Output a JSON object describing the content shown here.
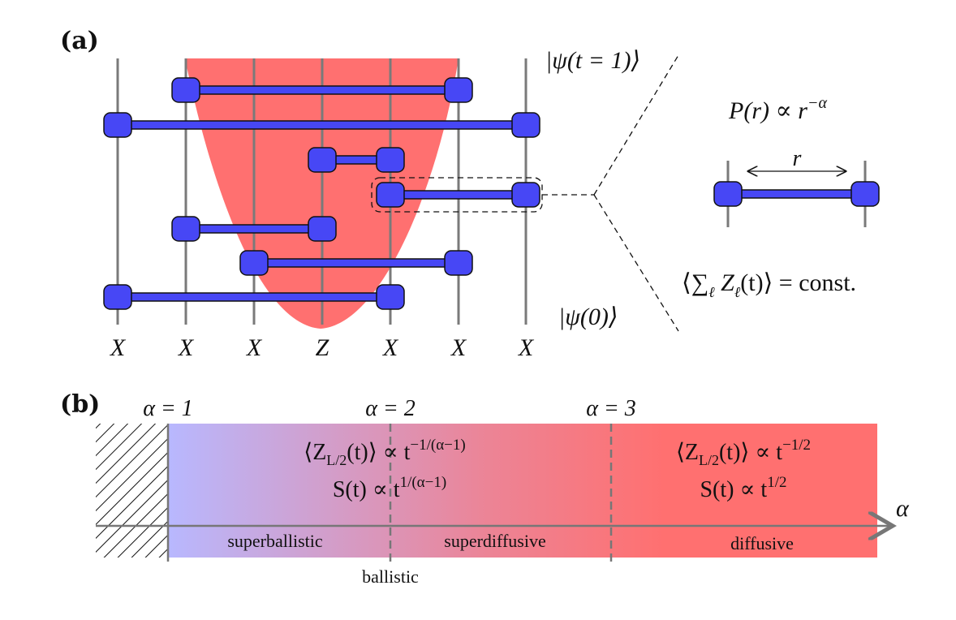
{
  "panel_a": {
    "label": "(a)",
    "state_top": "|ψ(t = 1)⟩",
    "state_bottom": "|ψ(0)⟩",
    "operators": [
      "X",
      "X",
      "X",
      "Z",
      "X",
      "X",
      "X"
    ],
    "probability_law": "P(r) ∝ r",
    "probability_exponent": "−α",
    "distance_label": "r",
    "conservation": "⟨∑",
    "conservation_sub": "ℓ",
    "conservation_rest": " Z",
    "conservation_rest_sub": "ℓ",
    "conservation_tail": "(t)⟩ = const.",
    "colors": {
      "gate": "#4747f5",
      "cone": "#ff7070",
      "wire": "#7a7a7a"
    }
  },
  "panel_b": {
    "label": "(b)",
    "alpha_markers": [
      "α = 1",
      "α = 2",
      "α = 3"
    ],
    "axis_label": "α",
    "left_formula_1a": "⟨Z",
    "left_formula_1sub": "L/2",
    "left_formula_1b": "(t)⟩ ∝ t",
    "left_formula_1sup": "−1/(α−1)",
    "left_formula_2a": "S(t) ∝ t",
    "left_formula_2sup": "1/(α−1)",
    "right_formula_1a": "⟨Z",
    "right_formula_1sub": "L/2",
    "right_formula_1b": "(t)⟩ ∝ t",
    "right_formula_1sup": "−1/2",
    "right_formula_2a": "S(t) ∝ t",
    "right_formula_2sup": "1/2",
    "regimes": [
      "superballistic",
      "superdiffusive",
      "diffusive"
    ],
    "ballistic_label": "ballistic",
    "colors": {
      "start": "#b8b8ff",
      "end": "#ff7070"
    }
  }
}
